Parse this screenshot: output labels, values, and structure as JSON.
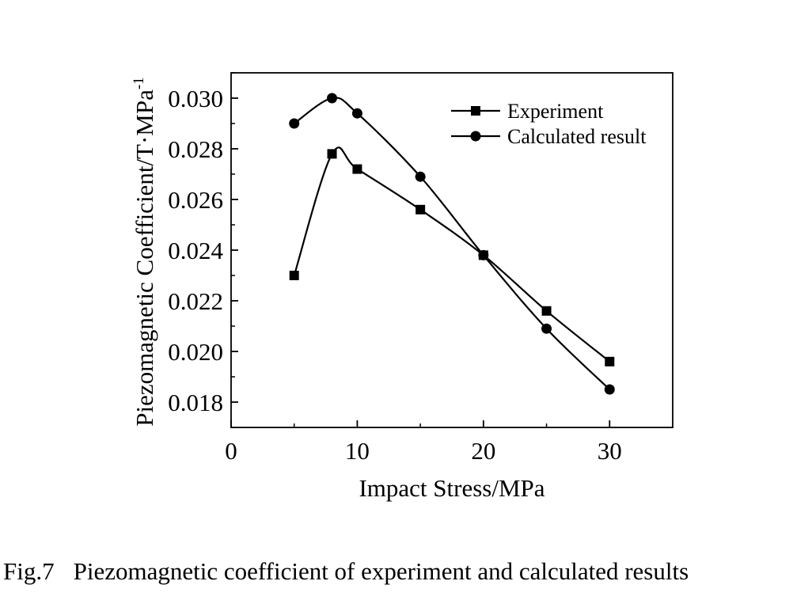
{
  "chart_data": {
    "type": "line",
    "title": "",
    "xlabel": "Impact Stress/MPa",
    "ylabel": "Piezomagnetic Coefficient/T·MPa",
    "ylabel_superscript": "-1",
    "xlim": [
      0,
      35
    ],
    "ylim": [
      0.017,
      0.031
    ],
    "x_ticks": [
      0,
      10,
      20,
      30
    ],
    "x_tick_labels": [
      "0",
      "10",
      "20",
      "30"
    ],
    "y_ticks": [
      0.018,
      0.02,
      0.022,
      0.024,
      0.026,
      0.028,
      0.03
    ],
    "y_tick_labels": [
      "0.018",
      "0.020",
      "0.022",
      "0.024",
      "0.026",
      "0.028",
      "0.030"
    ],
    "grid": false,
    "legend_position": "top-right",
    "series": [
      {
        "name": "Experiment",
        "marker": "square",
        "x": [
          5,
          8,
          10,
          15,
          20,
          25,
          30
        ],
        "y": [
          0.023,
          0.0278,
          0.0272,
          0.0256,
          0.0238,
          0.0216,
          0.0196
        ]
      },
      {
        "name": "Calculated result",
        "marker": "circle",
        "x": [
          5,
          8,
          10,
          15,
          20,
          25,
          30
        ],
        "y": [
          0.029,
          0.03,
          0.0294,
          0.0269,
          0.0238,
          0.0209,
          0.0185
        ]
      }
    ],
    "colors": {
      "line": "#000000",
      "axis": "#000000",
      "background": "#ffffff"
    }
  },
  "caption": {
    "number": "Fig.7",
    "text": "Piezomagnetic coefficient of experiment and calculated results"
  }
}
